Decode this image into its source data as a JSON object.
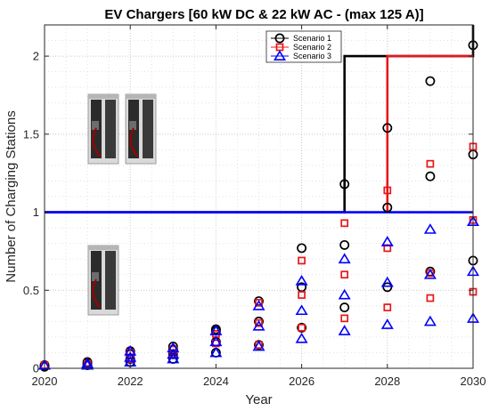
{
  "chart_data": {
    "type": "scatter",
    "title": "EV Chargers [60 kW DC & 22 kW AC - (max 125 A)]",
    "xlabel": "Year",
    "ylabel": "Number of Charging Stations",
    "xlim": [
      2020,
      2030
    ],
    "ylim": [
      0,
      2.2
    ],
    "xticks": [
      "2020",
      "2022",
      "2024",
      "2026",
      "2028",
      "2030"
    ],
    "yticks": [
      "0",
      "0.5",
      "1",
      "1.5",
      "2"
    ],
    "grid": true,
    "grid_style": "dotted major and minor",
    "legend_position": "top-right",
    "series": [
      {
        "name": "Scenario 1",
        "color": "#000000",
        "marker": "circle",
        "step_line": [
          [
            2020,
            1
          ],
          [
            2027,
            1
          ],
          [
            2027,
            2
          ],
          [
            2030,
            2
          ],
          [
            2030,
            2.2
          ]
        ],
        "points": [
          [
            2020,
            0.02
          ],
          [
            2020,
            0.01
          ],
          [
            2021,
            0.04
          ],
          [
            2021,
            0.03
          ],
          [
            2021,
            0.02
          ],
          [
            2022,
            0.11
          ],
          [
            2022,
            0.09
          ],
          [
            2022,
            0.06
          ],
          [
            2022,
            0.04
          ],
          [
            2023,
            0.14
          ],
          [
            2023,
            0.12
          ],
          [
            2023,
            0.09
          ],
          [
            2023,
            0.06
          ],
          [
            2024,
            0.25
          ],
          [
            2024,
            0.24
          ],
          [
            2024,
            0.17
          ],
          [
            2024,
            0.1
          ],
          [
            2025,
            0.43
          ],
          [
            2025,
            0.3
          ],
          [
            2025,
            0.15
          ],
          [
            2026,
            0.77
          ],
          [
            2026,
            0.52
          ],
          [
            2026,
            0.26
          ],
          [
            2027,
            1.18
          ],
          [
            2027,
            0.79
          ],
          [
            2027,
            0.39
          ],
          [
            2028,
            1.54
          ],
          [
            2028,
            1.03
          ],
          [
            2028,
            0.52
          ],
          [
            2029,
            1.84
          ],
          [
            2029,
            1.23
          ],
          [
            2029,
            0.62
          ],
          [
            2030,
            2.07
          ],
          [
            2030,
            1.37
          ],
          [
            2030,
            0.69
          ]
        ]
      },
      {
        "name": "Scenario 2",
        "color": "#e8161a",
        "marker": "square",
        "step_line": [
          [
            2028,
            1
          ],
          [
            2028,
            2
          ],
          [
            2030,
            2
          ]
        ],
        "points": [
          [
            2020,
            0.02
          ],
          [
            2021,
            0.03
          ],
          [
            2022,
            0.1
          ],
          [
            2022,
            0.06
          ],
          [
            2023,
            0.12
          ],
          [
            2023,
            0.09
          ],
          [
            2024,
            0.22
          ],
          [
            2024,
            0.16
          ],
          [
            2025,
            0.42
          ],
          [
            2025,
            0.29
          ],
          [
            2025,
            0.15
          ],
          [
            2026,
            0.69
          ],
          [
            2026,
            0.47
          ],
          [
            2026,
            0.26
          ],
          [
            2027,
            0.93
          ],
          [
            2027,
            0.6
          ],
          [
            2027,
            0.32
          ],
          [
            2028,
            1.14
          ],
          [
            2028,
            0.77
          ],
          [
            2028,
            0.39
          ],
          [
            2029,
            1.31
          ],
          [
            2029,
            0.61
          ],
          [
            2029,
            0.45
          ],
          [
            2030,
            1.42
          ],
          [
            2030,
            0.95
          ],
          [
            2030,
            0.49
          ]
        ]
      },
      {
        "name": "Scenario 3",
        "color": "#0000ff",
        "marker": "triangle",
        "step_line": [
          [
            2020,
            1
          ],
          [
            2030,
            1
          ]
        ],
        "points": [
          [
            2020,
            0.02
          ],
          [
            2021,
            0.03
          ],
          [
            2021,
            0.02
          ],
          [
            2022,
            0.11
          ],
          [
            2022,
            0.07
          ],
          [
            2022,
            0.04
          ],
          [
            2023,
            0.13
          ],
          [
            2023,
            0.09
          ],
          [
            2023,
            0.06
          ],
          [
            2024,
            0.24
          ],
          [
            2024,
            0.17
          ],
          [
            2024,
            0.1
          ],
          [
            2025,
            0.4
          ],
          [
            2025,
            0.27
          ],
          [
            2025,
            0.14
          ],
          [
            2026,
            0.56
          ],
          [
            2026,
            0.37
          ],
          [
            2026,
            0.19
          ],
          [
            2027,
            0.7
          ],
          [
            2027,
            0.47
          ],
          [
            2027,
            0.24
          ],
          [
            2028,
            0.81
          ],
          [
            2028,
            0.55
          ],
          [
            2028,
            0.28
          ],
          [
            2029,
            0.89
          ],
          [
            2029,
            0.6
          ],
          [
            2029,
            0.3
          ],
          [
            2030,
            0.94
          ],
          [
            2030,
            0.62
          ],
          [
            2030,
            0.32
          ]
        ]
      }
    ]
  },
  "images": [
    {
      "name": "charger-pair-picture",
      "icon": "ev-charger-pair",
      "count": 2
    },
    {
      "name": "charger-single-picture",
      "icon": "ev-charger",
      "count": 1
    }
  ]
}
